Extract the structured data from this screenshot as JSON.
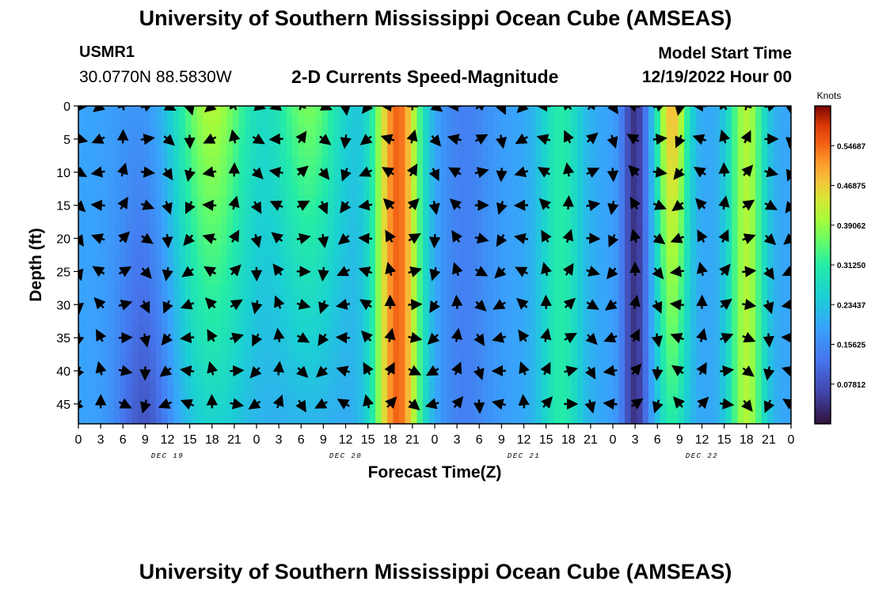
{
  "header": {
    "title": "University of Southern Mississippi Ocean Cube (AMSEAS)",
    "station_id": "USMR1",
    "coordinates": "30.0770N  88.5830W",
    "model_start_label": "Model Start Time",
    "model_start_value": "12/19/2022 Hour 00"
  },
  "footer": {
    "title_repeat": "University of Southern Mississippi Ocean Cube (AMSEAS)"
  },
  "chart_data": {
    "type": "heatmap",
    "title": "2-D Currents Speed-Magnitude",
    "xlabel": "Forecast Time(Z)",
    "ylabel": "Depth (ft)",
    "x_tick_labels": [
      "0",
      "3",
      "6",
      "9",
      "12",
      "15",
      "18",
      "21",
      "0",
      "3",
      "6",
      "9",
      "12",
      "15",
      "18",
      "21",
      "0",
      "3",
      "6",
      "9",
      "12",
      "15",
      "18",
      "21",
      "0",
      "3",
      "6",
      "9",
      "12",
      "15",
      "18",
      "21",
      "0"
    ],
    "x_hours": [
      0,
      3,
      6,
      9,
      12,
      15,
      18,
      21,
      24,
      27,
      30,
      33,
      36,
      39,
      42,
      45,
      48,
      51,
      54,
      57,
      60,
      63,
      66,
      69,
      72,
      75,
      78,
      81,
      84,
      87,
      90,
      93,
      96
    ],
    "date_labels": [
      {
        "label": "DEC 19",
        "hour": 12
      },
      {
        "label": "DEC 20",
        "hour": 36
      },
      {
        "label": "DEC 21",
        "hour": 60
      },
      {
        "label": "DEC 22",
        "hour": 84
      }
    ],
    "y_ticks": [
      0,
      5,
      10,
      15,
      20,
      25,
      30,
      35,
      40,
      45
    ],
    "ylim": [
      48,
      0
    ],
    "xlim": [
      0,
      96
    ],
    "colorbar": {
      "label": "Knots",
      "ticks": [
        "0.54687",
        "0.46875",
        "0.39062",
        "0.31250",
        "0.23437",
        "0.15625",
        "0.07812"
      ],
      "tick_values": [
        0.54687,
        0.46875,
        0.39062,
        0.3125,
        0.23437,
        0.15625,
        0.07812
      ],
      "range": [
        0,
        0.625
      ]
    },
    "vector_depths": [
      0,
      5,
      10,
      15,
      20,
      25,
      30,
      35,
      40,
      45
    ],
    "vector_hours": [
      0,
      3,
      6,
      9,
      12,
      15,
      18,
      21,
      24,
      27,
      30,
      33,
      36,
      39,
      42,
      45,
      48,
      51,
      54,
      57,
      60,
      63,
      66,
      69,
      72,
      75,
      78,
      81,
      84,
      87,
      90,
      93,
      96
    ]
  }
}
